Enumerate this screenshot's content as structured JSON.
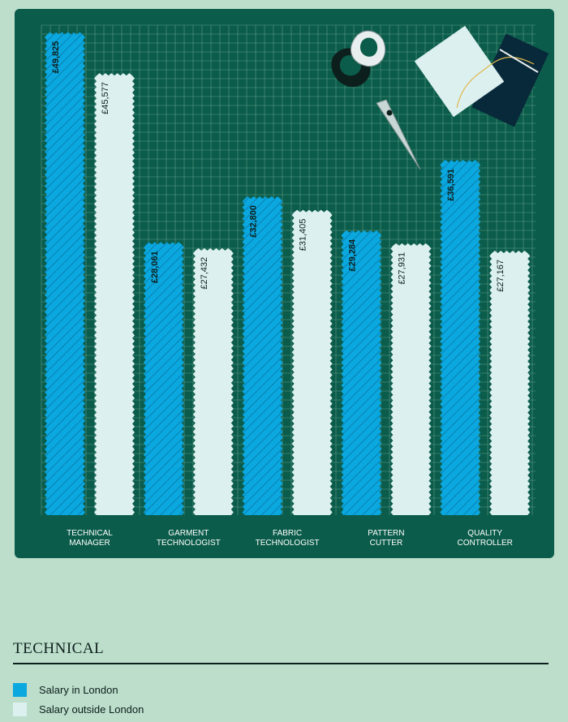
{
  "chart_data": {
    "type": "bar",
    "categories": [
      [
        "TECHNICAL",
        "MANAGER"
      ],
      [
        "GARMENT",
        "TECHNOLOGIST"
      ],
      [
        "FABRIC",
        "TECHNOLOGIST"
      ],
      [
        "PATTERN",
        "CUTTER"
      ],
      [
        "QUALITY",
        "CONTROLLER"
      ]
    ],
    "series": [
      {
        "name": "Salary in London",
        "values": [
          49825,
          28061,
          32800,
          29284,
          36591
        ],
        "labels": [
          "£49,825",
          "£28,061",
          "£32,800",
          "£29,284",
          "£36,591"
        ]
      },
      {
        "name": "Salary outside London",
        "values": [
          45577,
          27432,
          31405,
          27931,
          27167
        ],
        "labels": [
          "£45,577",
          "£27,432",
          "£31,405",
          "£27,931",
          "£27,167"
        ]
      }
    ],
    "ylim": [
      0,
      50800
    ],
    "grid": true,
    "colors": {
      "Salary in London": "#0aa8df",
      "Salary outside London": "#dcf0f0",
      "board": "#0b5c4a",
      "grid": "#5e9a8a",
      "page": "#bcdecb"
    },
    "title": "TECHNICAL",
    "legend_position": "bottom"
  }
}
